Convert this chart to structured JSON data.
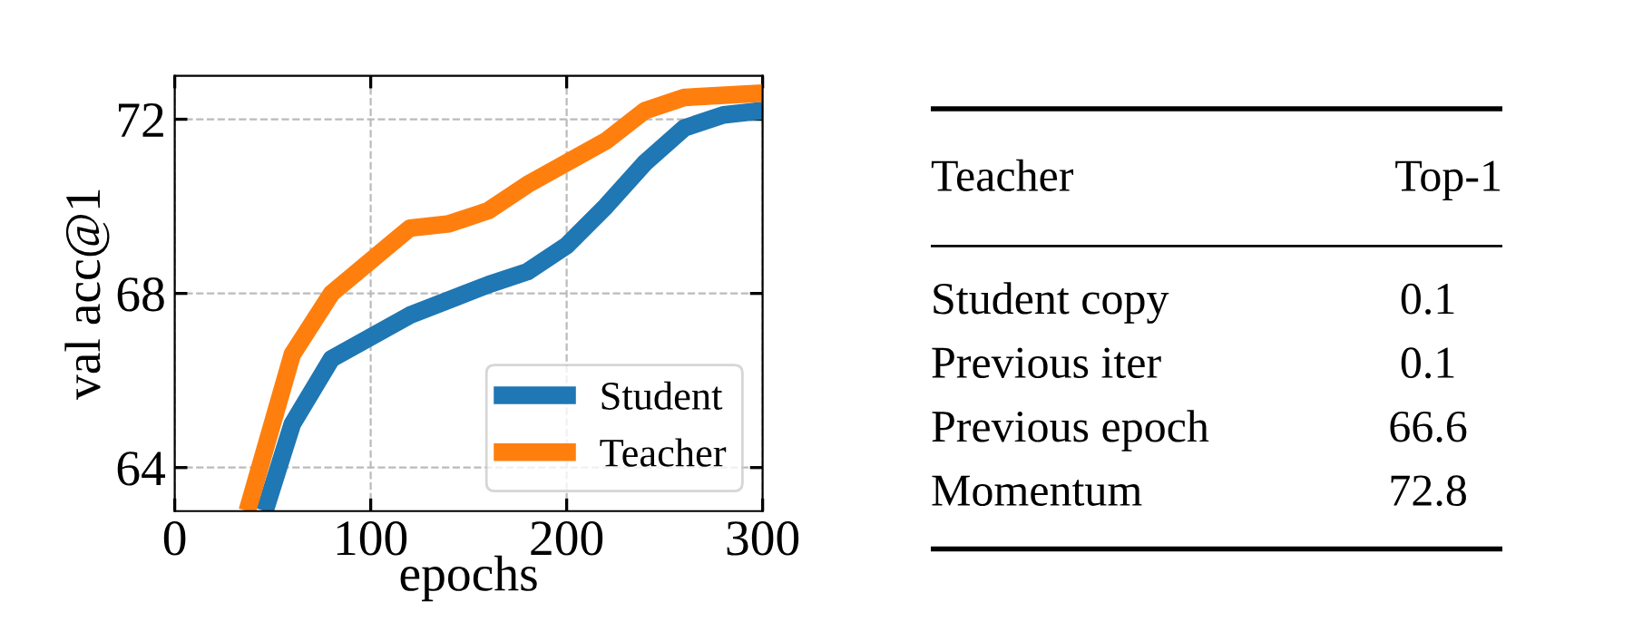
{
  "chart_data": [
    {
      "type": "line",
      "xlabel": "epochs",
      "ylabel": "val acc@1",
      "xlim": [
        0,
        300
      ],
      "ylim": [
        63,
        73
      ],
      "xticks": [
        0,
        100,
        200,
        300
      ],
      "yticks": [
        64,
        68,
        72
      ],
      "grid": true,
      "legend": "bottom right",
      "series": [
        {
          "name": "Student",
          "color": "#1f77b4",
          "x": [
            46,
            60,
            80,
            120,
            160,
            180,
            200,
            220,
            240,
            260,
            280,
            300
          ],
          "values": [
            63,
            65.0,
            66.5,
            67.5,
            68.2,
            68.5,
            69.1,
            70.0,
            71.0,
            71.8,
            72.1,
            72.2
          ]
        },
        {
          "name": "Teacher",
          "color": "#ff7f0e",
          "x": [
            37,
            60,
            80,
            120,
            140,
            160,
            180,
            200,
            220,
            240,
            260,
            300
          ],
          "values": [
            63,
            66.6,
            68.0,
            69.5,
            69.6,
            69.9,
            70.5,
            71.0,
            71.5,
            72.2,
            72.5,
            72.6
          ]
        }
      ]
    },
    {
      "type": "other",
      "annotations": [
        "Teacher",
        "Top-1"
      ],
      "categories": [
        "Student copy",
        "Previous iter",
        "Previous epoch",
        "Momentum"
      ],
      "values": [
        0.1,
        0.1,
        66.6,
        72.8
      ],
      "data_labels": true
    }
  ]
}
